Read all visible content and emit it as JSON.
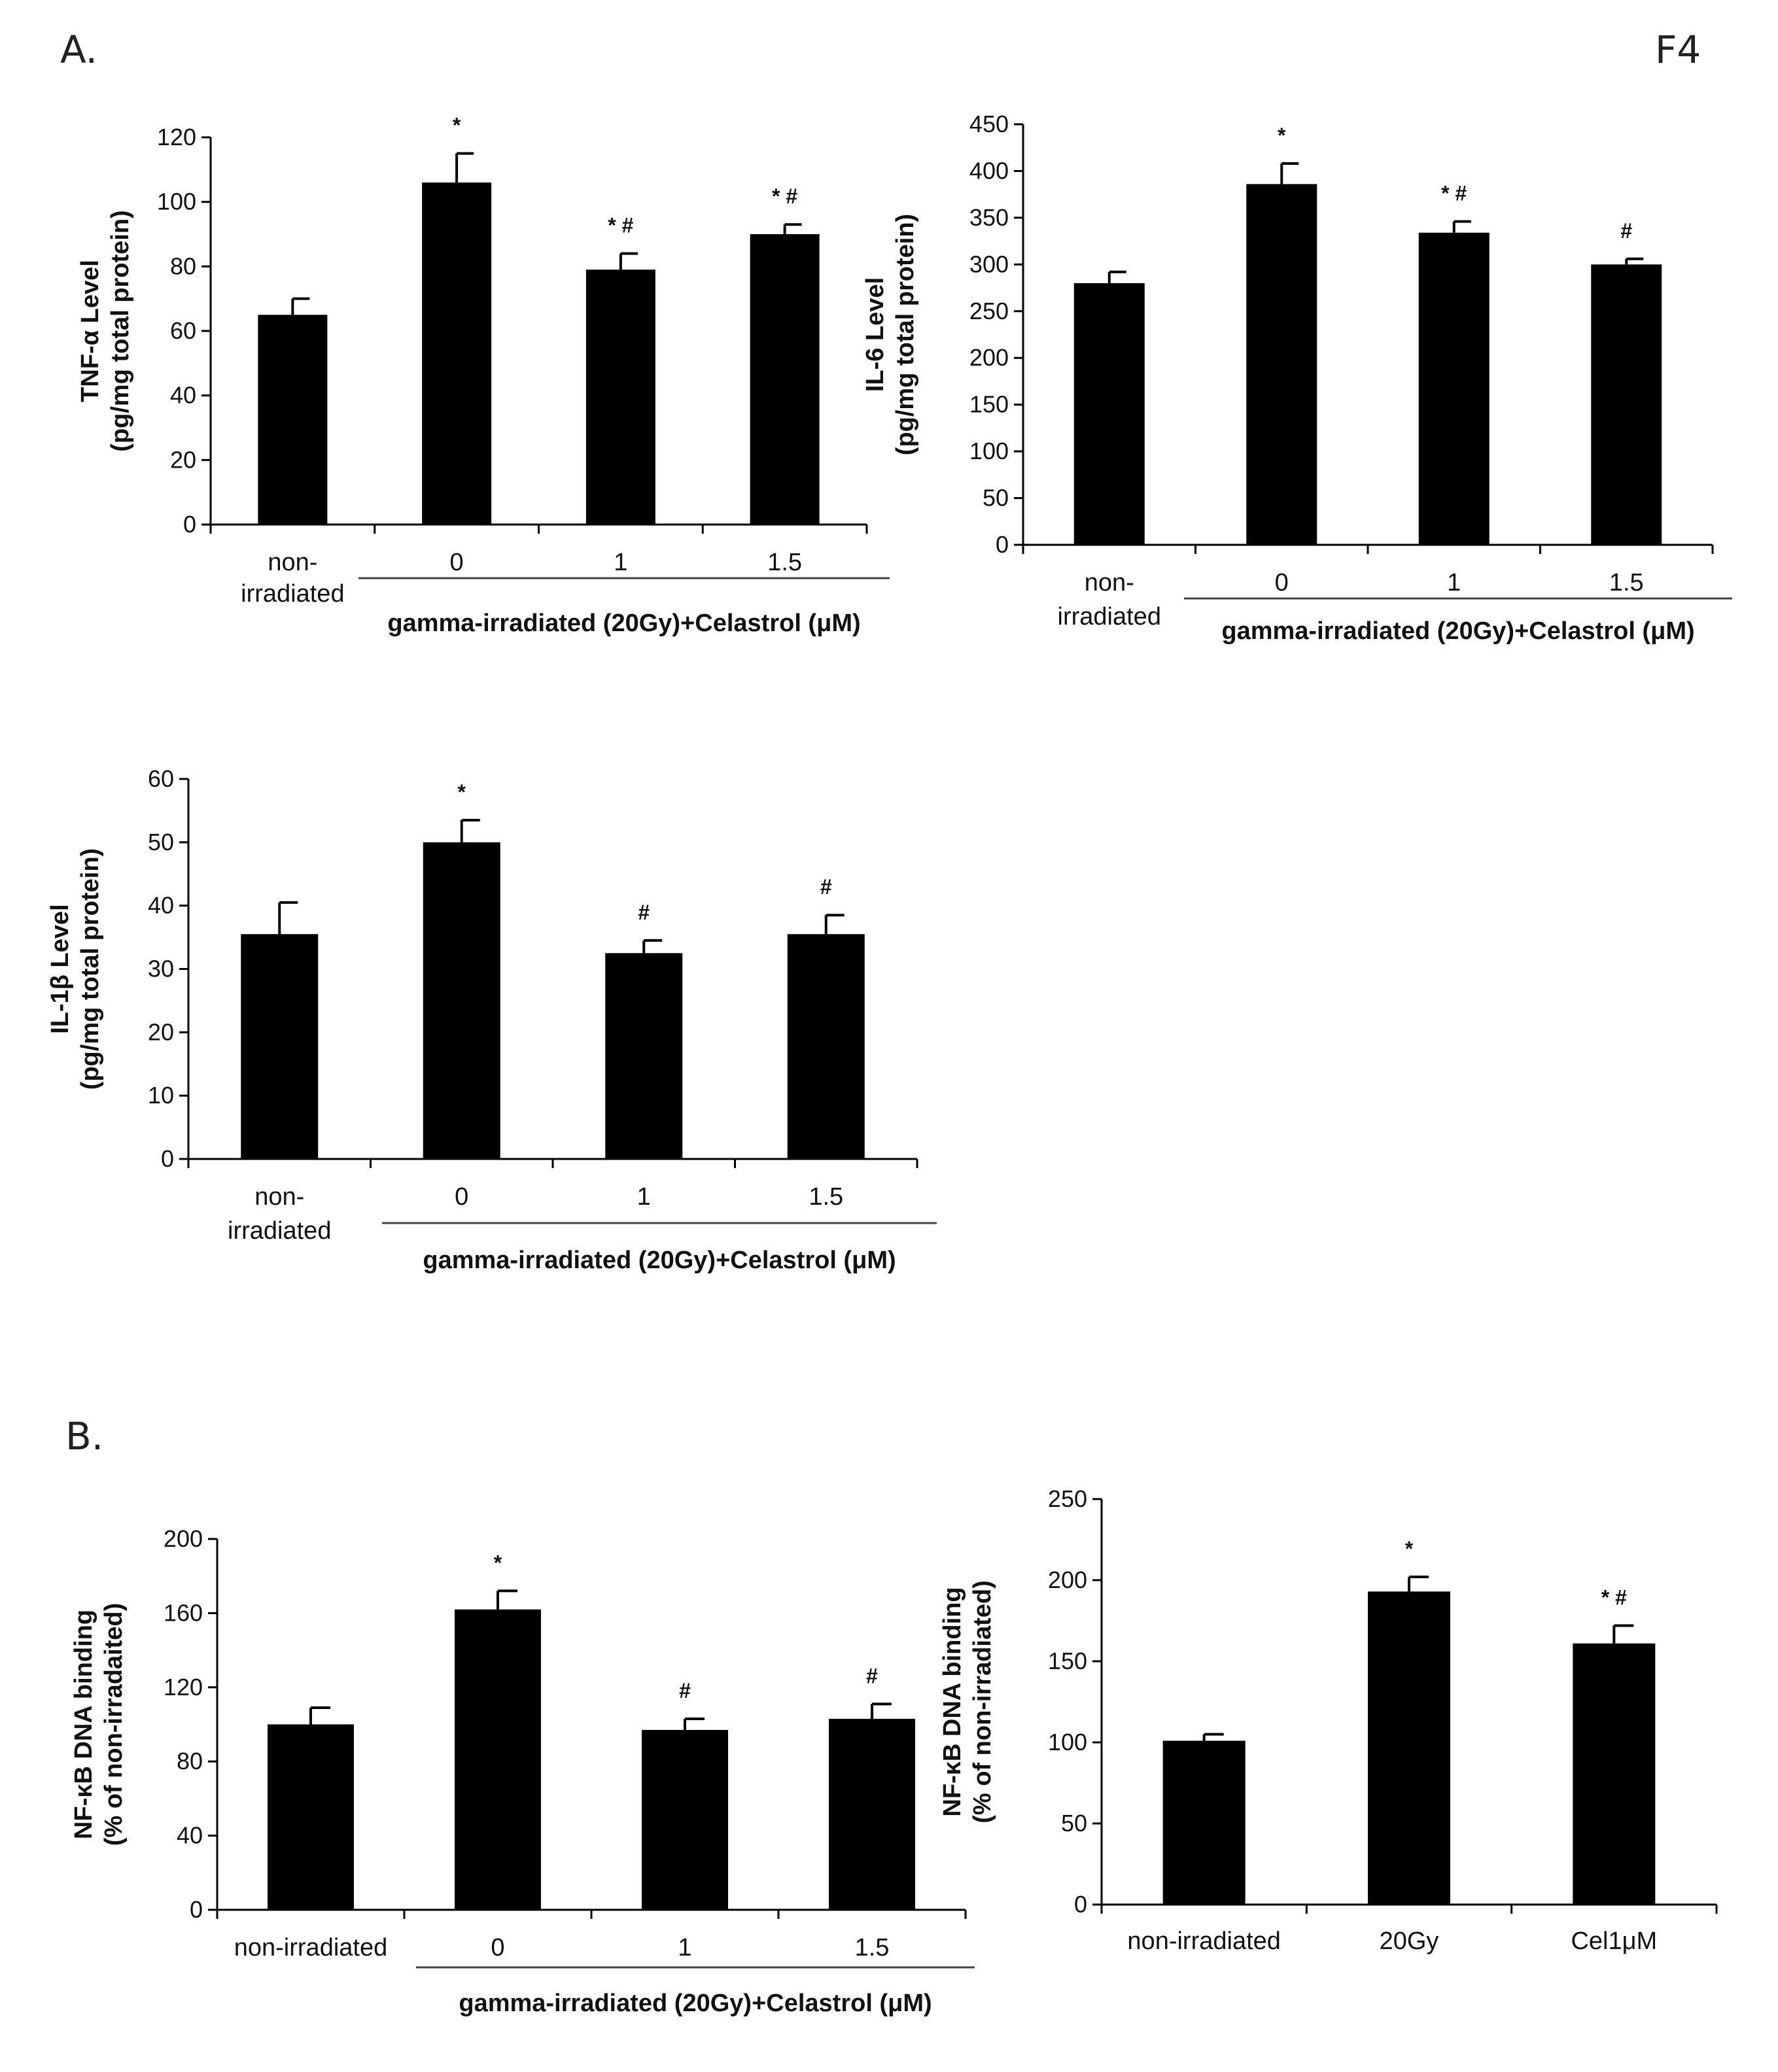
{
  "figure": {
    "panel_a": "A.",
    "panel_b": "B.",
    "figure_id": "F4"
  },
  "colors": {
    "bar": "#000000",
    "axis": "#000000",
    "text": "#111111"
  },
  "chart_data": [
    {
      "type": "bar",
      "id": "tnf",
      "ylabel_lines": [
        "TNF-α Level",
        "(pg/mg total protein)"
      ],
      "ylim": [
        0,
        120
      ],
      "yticks": [
        0,
        20,
        40,
        60,
        80,
        100,
        120
      ],
      "categories": [
        "non-irradiated",
        "0",
        "1",
        "1.5"
      ],
      "category_lines": [
        [
          "non-",
          "irradiated"
        ],
        [
          "0"
        ],
        [
          "1"
        ],
        [
          "1.5"
        ]
      ],
      "values": [
        65,
        106,
        79,
        90
      ],
      "errors": [
        5,
        9,
        5,
        3
      ],
      "annotations": [
        "",
        "*",
        "* #",
        "* #"
      ],
      "group_label": "gamma-irradiated (20Gy)+Celastrol (μM)",
      "legend": "none",
      "grid": false
    },
    {
      "type": "bar",
      "id": "il6",
      "ylabel_lines": [
        "IL-6 Level",
        "(pg/mg total protein)"
      ],
      "ylim": [
        0,
        450
      ],
      "yticks": [
        0,
        50,
        100,
        150,
        200,
        250,
        300,
        350,
        400,
        450
      ],
      "categories": [
        "non-irradiated",
        "0",
        "1",
        "1.5"
      ],
      "category_lines": [
        [
          "non-",
          "irradiated"
        ],
        [
          "0"
        ],
        [
          "1"
        ],
        [
          "1.5"
        ]
      ],
      "values": [
        280,
        386,
        334,
        300
      ],
      "errors": [
        12,
        22,
        12,
        6
      ],
      "annotations": [
        "",
        "*",
        "* #",
        "#"
      ],
      "group_label": "gamma-irradiated (20Gy)+Celastrol (μM)",
      "legend": "none",
      "grid": false
    },
    {
      "type": "bar",
      "id": "il1b",
      "ylabel_lines": [
        "IL-1β Level",
        "(pg/mg total protein)"
      ],
      "ylim": [
        0,
        60
      ],
      "yticks": [
        0,
        10,
        20,
        30,
        40,
        50,
        60
      ],
      "categories": [
        "non-irradiated",
        "0",
        "1",
        "1.5"
      ],
      "category_lines": [
        [
          "non-",
          "irradiated"
        ],
        [
          "0"
        ],
        [
          "1"
        ],
        [
          "1.5"
        ]
      ],
      "values": [
        35.5,
        50,
        32.5,
        35.5
      ],
      "errors": [
        5,
        3.5,
        2,
        3
      ],
      "annotations": [
        "",
        "*",
        "#",
        "#"
      ],
      "group_label": "gamma-irradiated (20Gy)+Celastrol (μM)",
      "legend": "none",
      "grid": false
    },
    {
      "type": "bar",
      "id": "nfkb_dose",
      "ylabel_lines": [
        "NF-κB DNA binding",
        "(% of non-irradaited)"
      ],
      "ylim": [
        0,
        200
      ],
      "yticks": [
        0,
        40,
        80,
        120,
        160,
        200
      ],
      "categories": [
        "non-irradiated",
        "0",
        "1",
        "1.5"
      ],
      "category_lines": [
        [
          "non-irradiated"
        ],
        [
          "0"
        ],
        [
          "1"
        ],
        [
          "1.5"
        ]
      ],
      "values": [
        100,
        162,
        97,
        103
      ],
      "errors": [
        9,
        10,
        6,
        8
      ],
      "annotations": [
        "",
        "*",
        "#",
        "#"
      ],
      "group_label": "gamma-irradiated (20Gy)+Celastrol (μM)",
      "legend": "none",
      "grid": false
    },
    {
      "type": "bar",
      "id": "nfkb_cel",
      "ylabel_lines": [
        "NF-κB DNA binding",
        "(% of non-irradiated)"
      ],
      "ylim": [
        0,
        250
      ],
      "yticks": [
        0,
        50,
        100,
        150,
        200,
        250
      ],
      "categories": [
        "non-irradiated",
        "20Gy",
        "Cel1μM"
      ],
      "category_lines": [
        [
          "non-irradiated"
        ],
        [
          "20Gy"
        ],
        [
          "Cel1μM"
        ]
      ],
      "values": [
        101,
        193,
        161
      ],
      "errors": [
        4,
        9,
        11
      ],
      "annotations": [
        "",
        "*",
        "* #"
      ],
      "group_label": "",
      "legend": "none",
      "grid": false
    }
  ]
}
